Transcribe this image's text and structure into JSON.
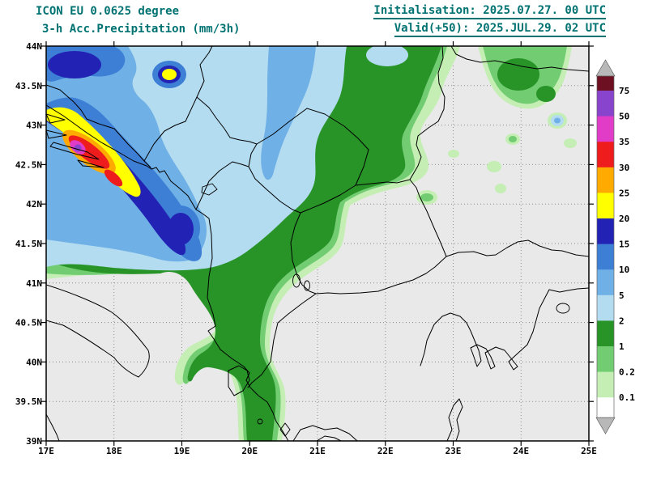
{
  "header": {
    "model_line": "ICON EU 0.0625 degree",
    "product_line": "3-h Acc.Precipitation (mm/3h)",
    "init_line": "Initialisation: 2025.07.27. 00 UTC",
    "valid_line": "Valid(+50): 2025.JUL.29. 02 UTC",
    "text_color": "#007272"
  },
  "map": {
    "bg_color": "#e9e9e9",
    "grid_color": "#8c8c8c",
    "border_color": "#000000",
    "lat_ticks": [
      {
        "value": 44,
        "label": "44N"
      },
      {
        "value": 43.5,
        "label": "43.5N"
      },
      {
        "value": 43,
        "label": "43N"
      },
      {
        "value": 42.5,
        "label": "42.5N"
      },
      {
        "value": 42,
        "label": "42N"
      },
      {
        "value": 41.5,
        "label": "41.5N"
      },
      {
        "value": 41,
        "label": "41N"
      },
      {
        "value": 40.5,
        "label": "40.5N"
      },
      {
        "value": 40,
        "label": "40N"
      },
      {
        "value": 39.5,
        "label": "39.5N"
      },
      {
        "value": 39,
        "label": "39N"
      }
    ],
    "lon_ticks": [
      {
        "value": 17,
        "label": "17E"
      },
      {
        "value": 18,
        "label": "18E"
      },
      {
        "value": 19,
        "label": "19E"
      },
      {
        "value": 20,
        "label": "20E"
      },
      {
        "value": 21,
        "label": "21E"
      },
      {
        "value": 22,
        "label": "22E"
      },
      {
        "value": 23,
        "label": "23E"
      },
      {
        "value": 24,
        "label": "24E"
      },
      {
        "value": 25,
        "label": "25E"
      }
    ]
  },
  "legend": {
    "below_min_color": "#ffffff",
    "arrow_color": "#b8b8b8",
    "levels": [
      {
        "value": "0.1",
        "color": "#c4eeb4"
      },
      {
        "value": "0.2",
        "color": "#72cc72"
      },
      {
        "value": "1",
        "color": "#289428"
      },
      {
        "value": "2",
        "color": "#b4dcf0"
      },
      {
        "value": "5",
        "color": "#6fb0e6"
      },
      {
        "value": "10",
        "color": "#3e7fd6"
      },
      {
        "value": "15",
        "color": "#2222b4"
      },
      {
        "value": "20",
        "color": "#ffff00"
      },
      {
        "value": "25",
        "color": "#ffaa00"
      },
      {
        "value": "30",
        "color": "#ee1c1c"
      },
      {
        "value": "35",
        "color": "#e03cc8"
      },
      {
        "value": "50",
        "color": "#8844cc"
      },
      {
        "value": "75",
        "color": "#6d1021"
      }
    ]
  }
}
